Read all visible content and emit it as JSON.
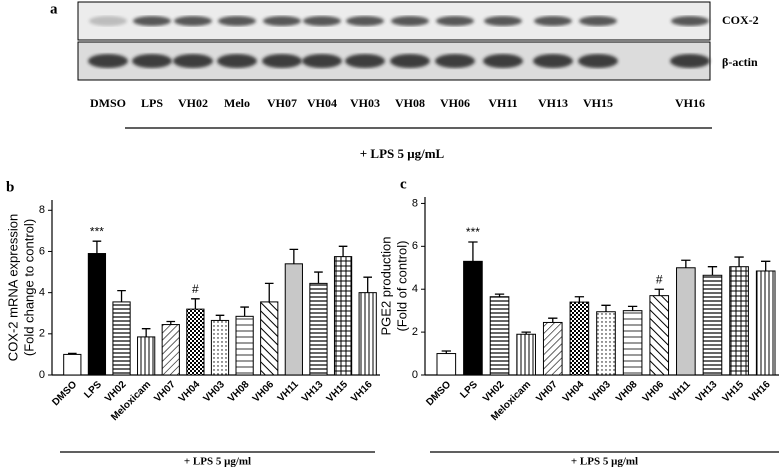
{
  "blot": {
    "panel": "a",
    "rows": [
      "COX-2",
      "β-actin"
    ],
    "lanes": [
      "DMSO",
      "LPS",
      "VH02",
      "Melo",
      "VH07",
      "VH04",
      "VH03",
      "VH08",
      "VH06",
      "VH11",
      "VH13",
      "VH15",
      "VH16"
    ],
    "treatment": "+ LPS 5 μg/mL"
  },
  "chart_data": [
    {
      "type": "bar",
      "panel": "b",
      "ylabel": [
        "COX-2 mRNA expression",
        "(Fold change to control)"
      ],
      "xlabel": "+ LPS 5 μg/ml",
      "categories": [
        "DMSO",
        "LPS",
        "VH02",
        "Meloxicam",
        "VH07",
        "VH04",
        "VH03",
        "VH08",
        "VH06",
        "VH11",
        "VH13",
        "VH15",
        "VH16"
      ],
      "values": [
        1.0,
        5.9,
        3.55,
        1.85,
        2.45,
        3.2,
        2.65,
        2.85,
        3.55,
        5.4,
        4.45,
        5.75,
        4.0
      ],
      "errors": [
        0.05,
        0.6,
        0.55,
        0.4,
        0.15,
        0.5,
        0.25,
        0.45,
        0.9,
        0.7,
        0.55,
        0.5,
        0.75
      ],
      "patterns": [
        "white",
        "black",
        "hlines",
        "vlines",
        "diag",
        "check",
        "dots",
        "hlines2",
        "diag2",
        "grey",
        "hlines",
        "grid",
        "vlines"
      ],
      "annotations": [
        {
          "label": "***",
          "category": "LPS"
        },
        {
          "label": "#",
          "category": "VH04"
        }
      ],
      "ylim": [
        0,
        8.5
      ],
      "yticks": [
        0,
        2,
        4,
        6,
        8
      ]
    },
    {
      "type": "bar",
      "panel": "c",
      "ylabel": [
        "PGE2 production",
        "(Fold of control)"
      ],
      "xlabel": "+ LPS 5 μg/ml",
      "categories": [
        "DMSO",
        "LPS",
        "VH02",
        "Meloxicam",
        "VH07",
        "VH04",
        "VH03",
        "VH08",
        "VH06",
        "VH11",
        "VH13",
        "VH15",
        "VH16"
      ],
      "values": [
        1.0,
        5.3,
        3.65,
        1.9,
        2.45,
        3.4,
        2.95,
        3.0,
        3.7,
        5.0,
        4.65,
        5.05,
        4.85
      ],
      "errors": [
        0.12,
        0.9,
        0.12,
        0.1,
        0.2,
        0.25,
        0.3,
        0.2,
        0.3,
        0.35,
        0.4,
        0.45,
        0.45
      ],
      "patterns": [
        "white",
        "black",
        "hlines",
        "vlines",
        "diag",
        "check",
        "dots",
        "hlines2",
        "diag2",
        "grey",
        "hlines",
        "grid",
        "vlines"
      ],
      "annotations": [
        {
          "label": "***",
          "category": "LPS"
        },
        {
          "label": "#",
          "category": "VH06"
        }
      ],
      "ylim": [
        0,
        8.3
      ],
      "yticks": [
        0,
        2,
        4,
        6,
        8
      ]
    }
  ]
}
